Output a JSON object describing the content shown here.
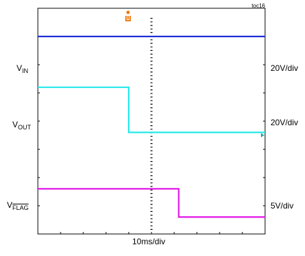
{
  "chart_data": {
    "type": "line",
    "title": "",
    "tag": "toc16",
    "xlabel": "10ms/div",
    "x_divisions": 10,
    "y_divisions": 8,
    "trigger_division": 5,
    "series": [
      {
        "name": "VIN",
        "label_main": "V",
        "label_sub": "IN",
        "label_overline": false,
        "scale": "20V/div",
        "color": "#1f2fd6",
        "x": [
          0,
          10
        ],
        "y_div": [
          7.0,
          7.0
        ],
        "ground_div": 6.0,
        "ground_color": "#1f2fd6"
      },
      {
        "name": "VOUT",
        "label_main": "V",
        "label_sub": "OUT",
        "label_overline": false,
        "scale": "20V/div",
        "color": "#26e8ea",
        "x": [
          0,
          4.0,
          4.0,
          10
        ],
        "y_div": [
          5.2,
          5.2,
          3.6,
          3.6
        ],
        "ground_div": 3.5,
        "ground_color": "#2aa7b0"
      },
      {
        "name": "VFLAG",
        "label_main": "V",
        "label_sub": "FLAG",
        "label_overline": true,
        "scale": "5V/div",
        "color": "#e015e6",
        "x": [
          0,
          6.2,
          6.2,
          10
        ],
        "y_div": [
          1.6,
          1.6,
          0.6,
          0.6
        ],
        "ground_div": 0.6,
        "ground_color": "#e015e6"
      }
    ],
    "trigger_marker_color": "#f07a10"
  }
}
